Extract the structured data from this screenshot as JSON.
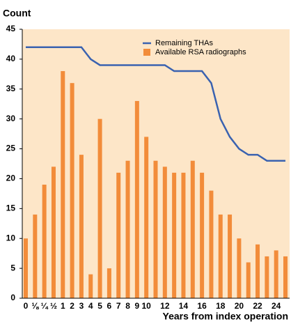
{
  "chart_data": {
    "type": "bar_line",
    "y_axis_title": "Count",
    "x_axis_title": "Years from index operation",
    "categories": [
      "0",
      "⅛",
      "¼",
      "½",
      "1",
      "2",
      "3",
      "4",
      "5",
      "6",
      "7",
      "8",
      "9",
      "10",
      null,
      "12",
      null,
      "14",
      null,
      "16",
      null,
      "18",
      null,
      "20",
      null,
      "22",
      null,
      "24",
      null
    ],
    "series": [
      {
        "name": "Remaining THAs",
        "kind": "line",
        "color": "#3a62b0",
        "values": [
          42,
          42,
          42,
          42,
          42,
          42,
          42,
          40,
          39,
          39,
          39,
          39,
          39,
          39,
          39,
          39,
          38,
          38,
          38,
          38,
          36,
          30,
          27,
          25,
          24,
          24,
          23,
          23,
          23
        ]
      },
      {
        "name": "Available RSA radiographs",
        "kind": "bar",
        "color": "#f28c3a",
        "values": [
          10,
          14,
          19,
          22,
          38,
          36,
          24,
          4,
          30,
          5,
          21,
          23,
          33,
          27,
          23,
          22,
          21,
          21,
          23,
          21,
          18,
          14,
          14,
          10,
          6,
          9,
          7,
          8,
          7
        ]
      }
    ],
    "ylim": [
      0,
      45
    ],
    "yticks": [
      0,
      5,
      10,
      15,
      20,
      25,
      30,
      35,
      40,
      45
    ],
    "grid": false,
    "legend": "top-right",
    "background": "#fde6c8"
  }
}
